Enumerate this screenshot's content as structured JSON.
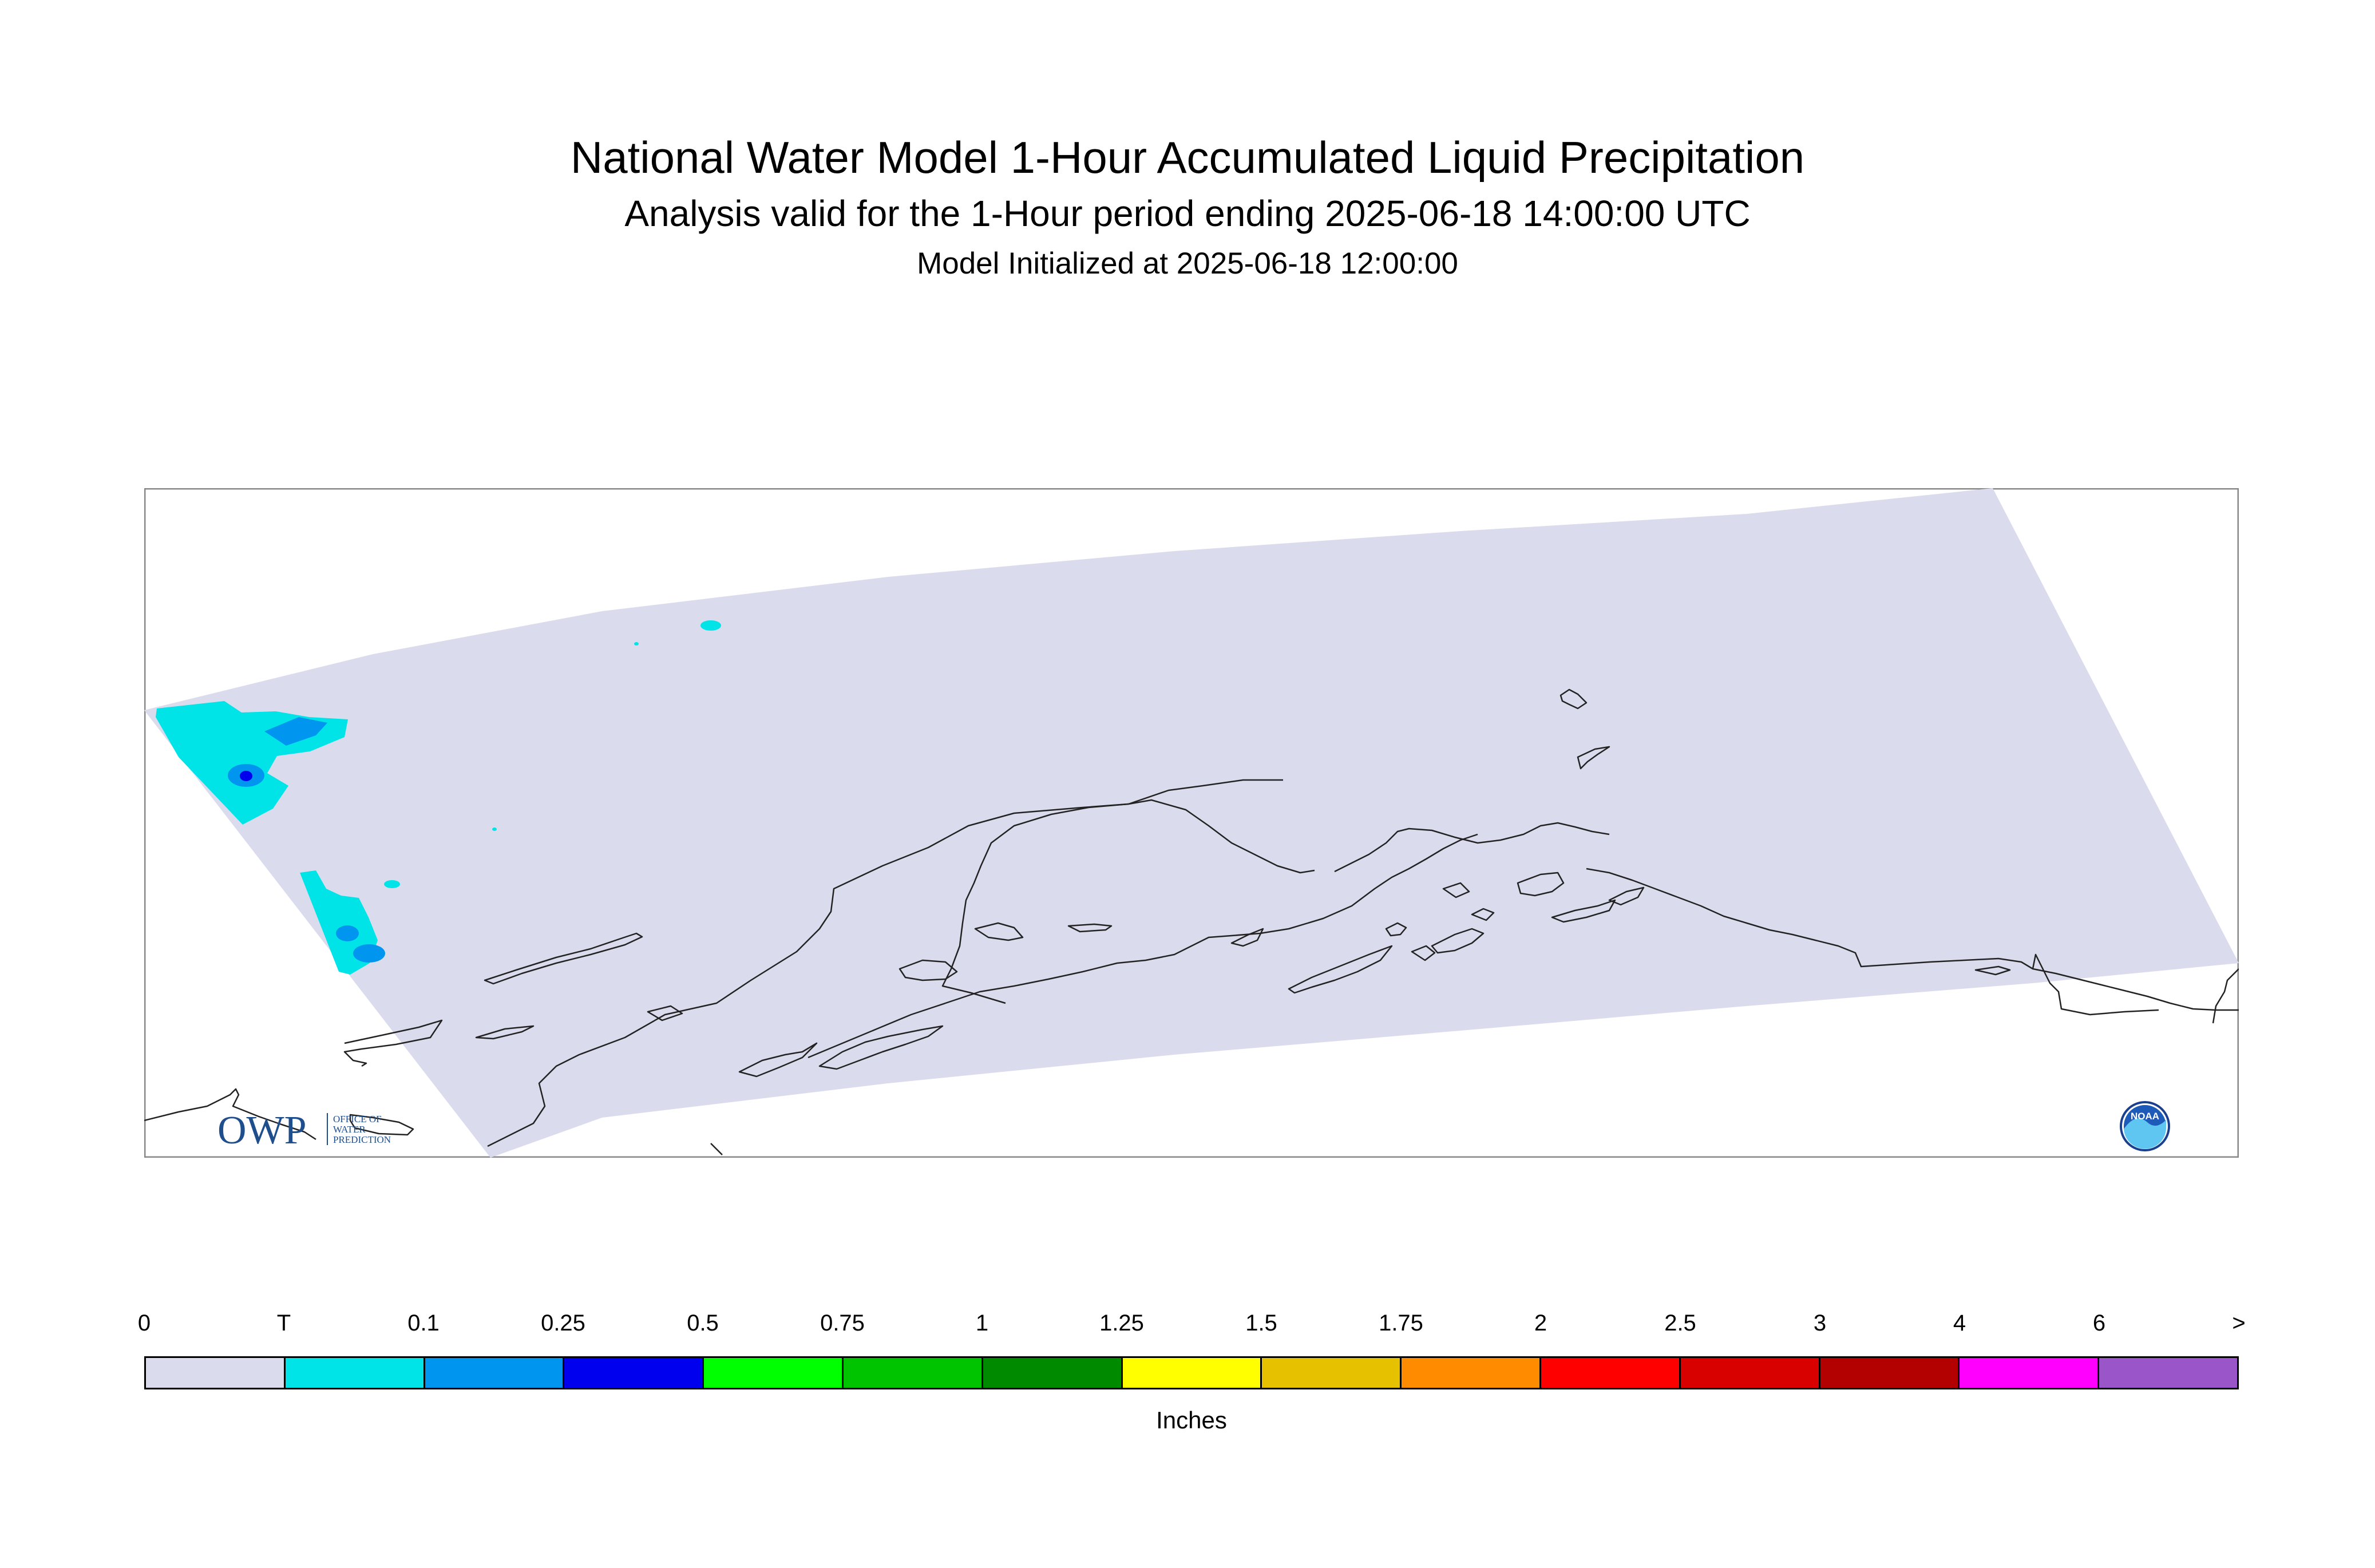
{
  "header": {
    "title": "National Water Model 1-Hour Accumulated Liquid Precipitation",
    "subtitle": "Analysis valid for the 1-Hour period ending 2025-06-18 14:00:00 UTC",
    "init": "Model Initialized at 2025-06-18 12:00:00"
  },
  "logos": {
    "owp": {
      "letters": "OWP",
      "lines": [
        "OFFICE OF",
        "WATER",
        "PREDICTION"
      ]
    },
    "noaa": {
      "text": "NOAA"
    }
  },
  "colors": {
    "domain_fill": "#dadcee",
    "precip_trace": "#00e4e8",
    "precip_0_1": "#0095ee",
    "precip_0_25": "#0000ee",
    "coastline": "#222222"
  },
  "legend": {
    "ticks": [
      "0",
      "T",
      "0.1",
      "0.25",
      "0.5",
      "0.75",
      "1",
      "1.25",
      "1.5",
      "1.75",
      "2",
      "2.5",
      "3",
      "4",
      "6",
      ">"
    ],
    "colors": [
      "#dadcee",
      "#00e4e8",
      "#0095ee",
      "#0000ee",
      "#00ff00",
      "#00c400",
      "#008a00",
      "#ffff00",
      "#e5c100",
      "#ff8c00",
      "#ff0000",
      "#d90000",
      "#b30000",
      "#ff00ff",
      "#9a55c9"
    ],
    "units": "Inches"
  }
}
